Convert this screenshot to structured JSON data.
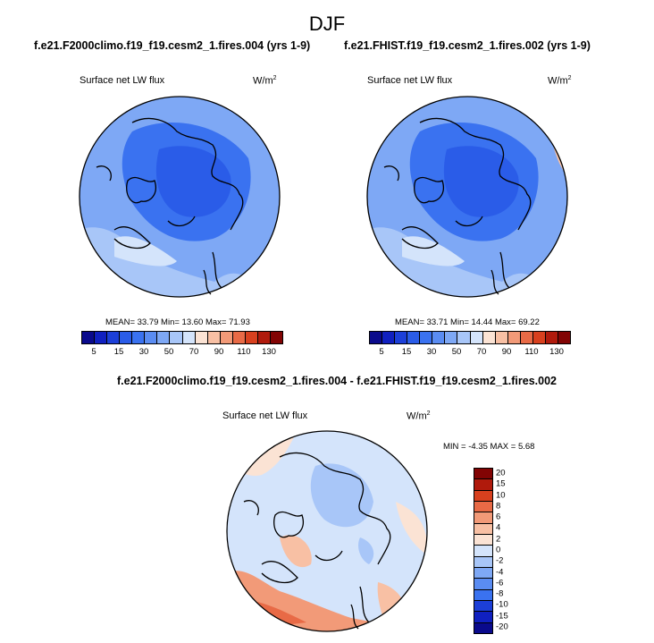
{
  "season": "DJF",
  "panels": [
    {
      "title": "f.e21.F2000climo.f19_f19.cesm2_1.fires.004 (yrs 1-9)",
      "variable": "Surface net LW flux",
      "units_base": "W/m",
      "units_exp": "2",
      "stats": "MEAN=  33.79   Min=  13.60   Max=  71.93",
      "colorbar_labels": [
        "5",
        "15",
        "30",
        "50",
        "70",
        "90",
        "110",
        "130"
      ]
    },
    {
      "title": "f.e21.FHIST.f19_f19.cesm2_1.fires.002 (yrs 1-9)",
      "variable": "Surface net LW flux",
      "units_base": "W/m",
      "units_exp": "2",
      "stats": "MEAN=  33.71   Min=  14.44   Max=  69.22",
      "colorbar_labels": [
        "5",
        "15",
        "30",
        "50",
        "70",
        "90",
        "110",
        "130"
      ]
    }
  ],
  "diff": {
    "title": "f.e21.F2000climo.f19_f19.cesm2_1.fires.004 - f.e21.FHIST.f19_f19.cesm2_1.fires.002",
    "variable": "Surface net LW flux",
    "units_base": "W/m",
    "units_exp": "2",
    "stats": "MIN =  -4.35  MAX =   5.68",
    "colorbar_labels": [
      "20",
      "15",
      "10",
      "8",
      "6",
      "4",
      "2",
      "0",
      "-2",
      "-4",
      "-6",
      "-8",
      "-10",
      "-15",
      "-20"
    ]
  },
  "colors": {
    "abs_scale": [
      "#0a0a8c",
      "#1020c0",
      "#1c3fd8",
      "#2a5ce8",
      "#3a72f0",
      "#5a8cf2",
      "#7ea8f5",
      "#a8c6f8",
      "#d4e4fb",
      "#fbe3d4",
      "#f8c0a4",
      "#f29a78",
      "#e86a46",
      "#d8401e",
      "#b01a0c",
      "#820404"
    ],
    "diff_scale": [
      "#820404",
      "#b01a0c",
      "#d8401e",
      "#e86a46",
      "#f29a78",
      "#f8c0a4",
      "#fbe3d4",
      "#d4e4fb",
      "#a8c6f8",
      "#7ea8f5",
      "#5a8cf2",
      "#3a72f0",
      "#1c3fd8",
      "#1020c0",
      "#0a0a8c"
    ]
  }
}
